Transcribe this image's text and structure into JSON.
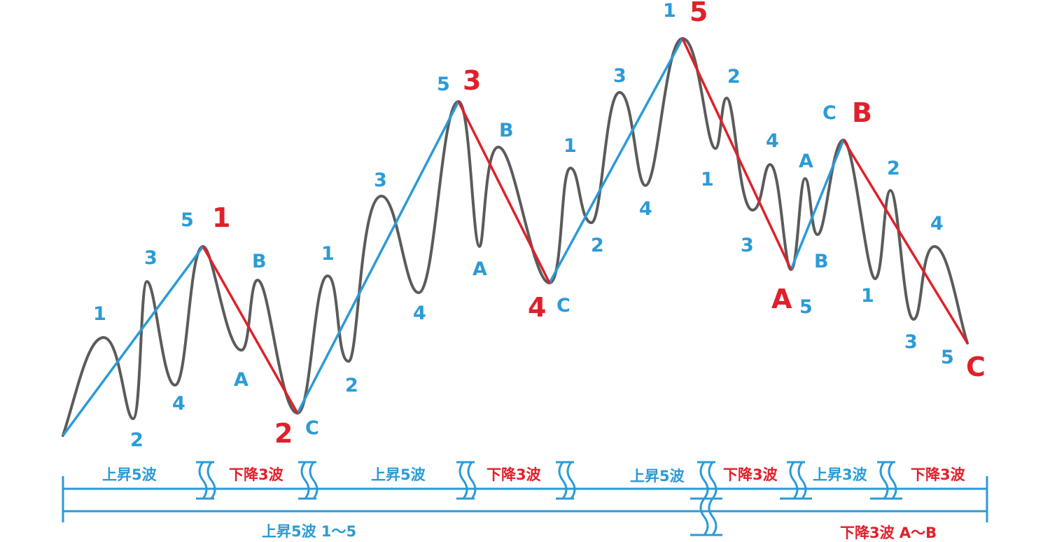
{
  "colors": {
    "up": "#2b9bd6",
    "down": "#e0202a",
    "wave": "#5b5b5b"
  },
  "major_labels": [
    "1",
    "2",
    "3",
    "4",
    "5",
    "A",
    "B",
    "C"
  ],
  "minor_labels": [
    "1",
    "2",
    "3",
    "4",
    "5",
    "A",
    "B",
    "C",
    "1",
    "2",
    "3",
    "4",
    "5",
    "A",
    "B",
    "C",
    "1",
    "2",
    "3",
    "4",
    "1",
    "2",
    "3",
    "4",
    "5",
    "A",
    "B",
    "C",
    "1",
    "2",
    "3",
    "4",
    "5"
  ],
  "timeline": {
    "row1": [
      "上昇5波",
      "下降3波",
      "上昇5波",
      "下降3波",
      "上昇5波",
      "下降3波",
      "上昇3波",
      "下降3波"
    ],
    "row2": [
      "上昇5波 1〜5",
      "下降3波 A〜B"
    ]
  }
}
